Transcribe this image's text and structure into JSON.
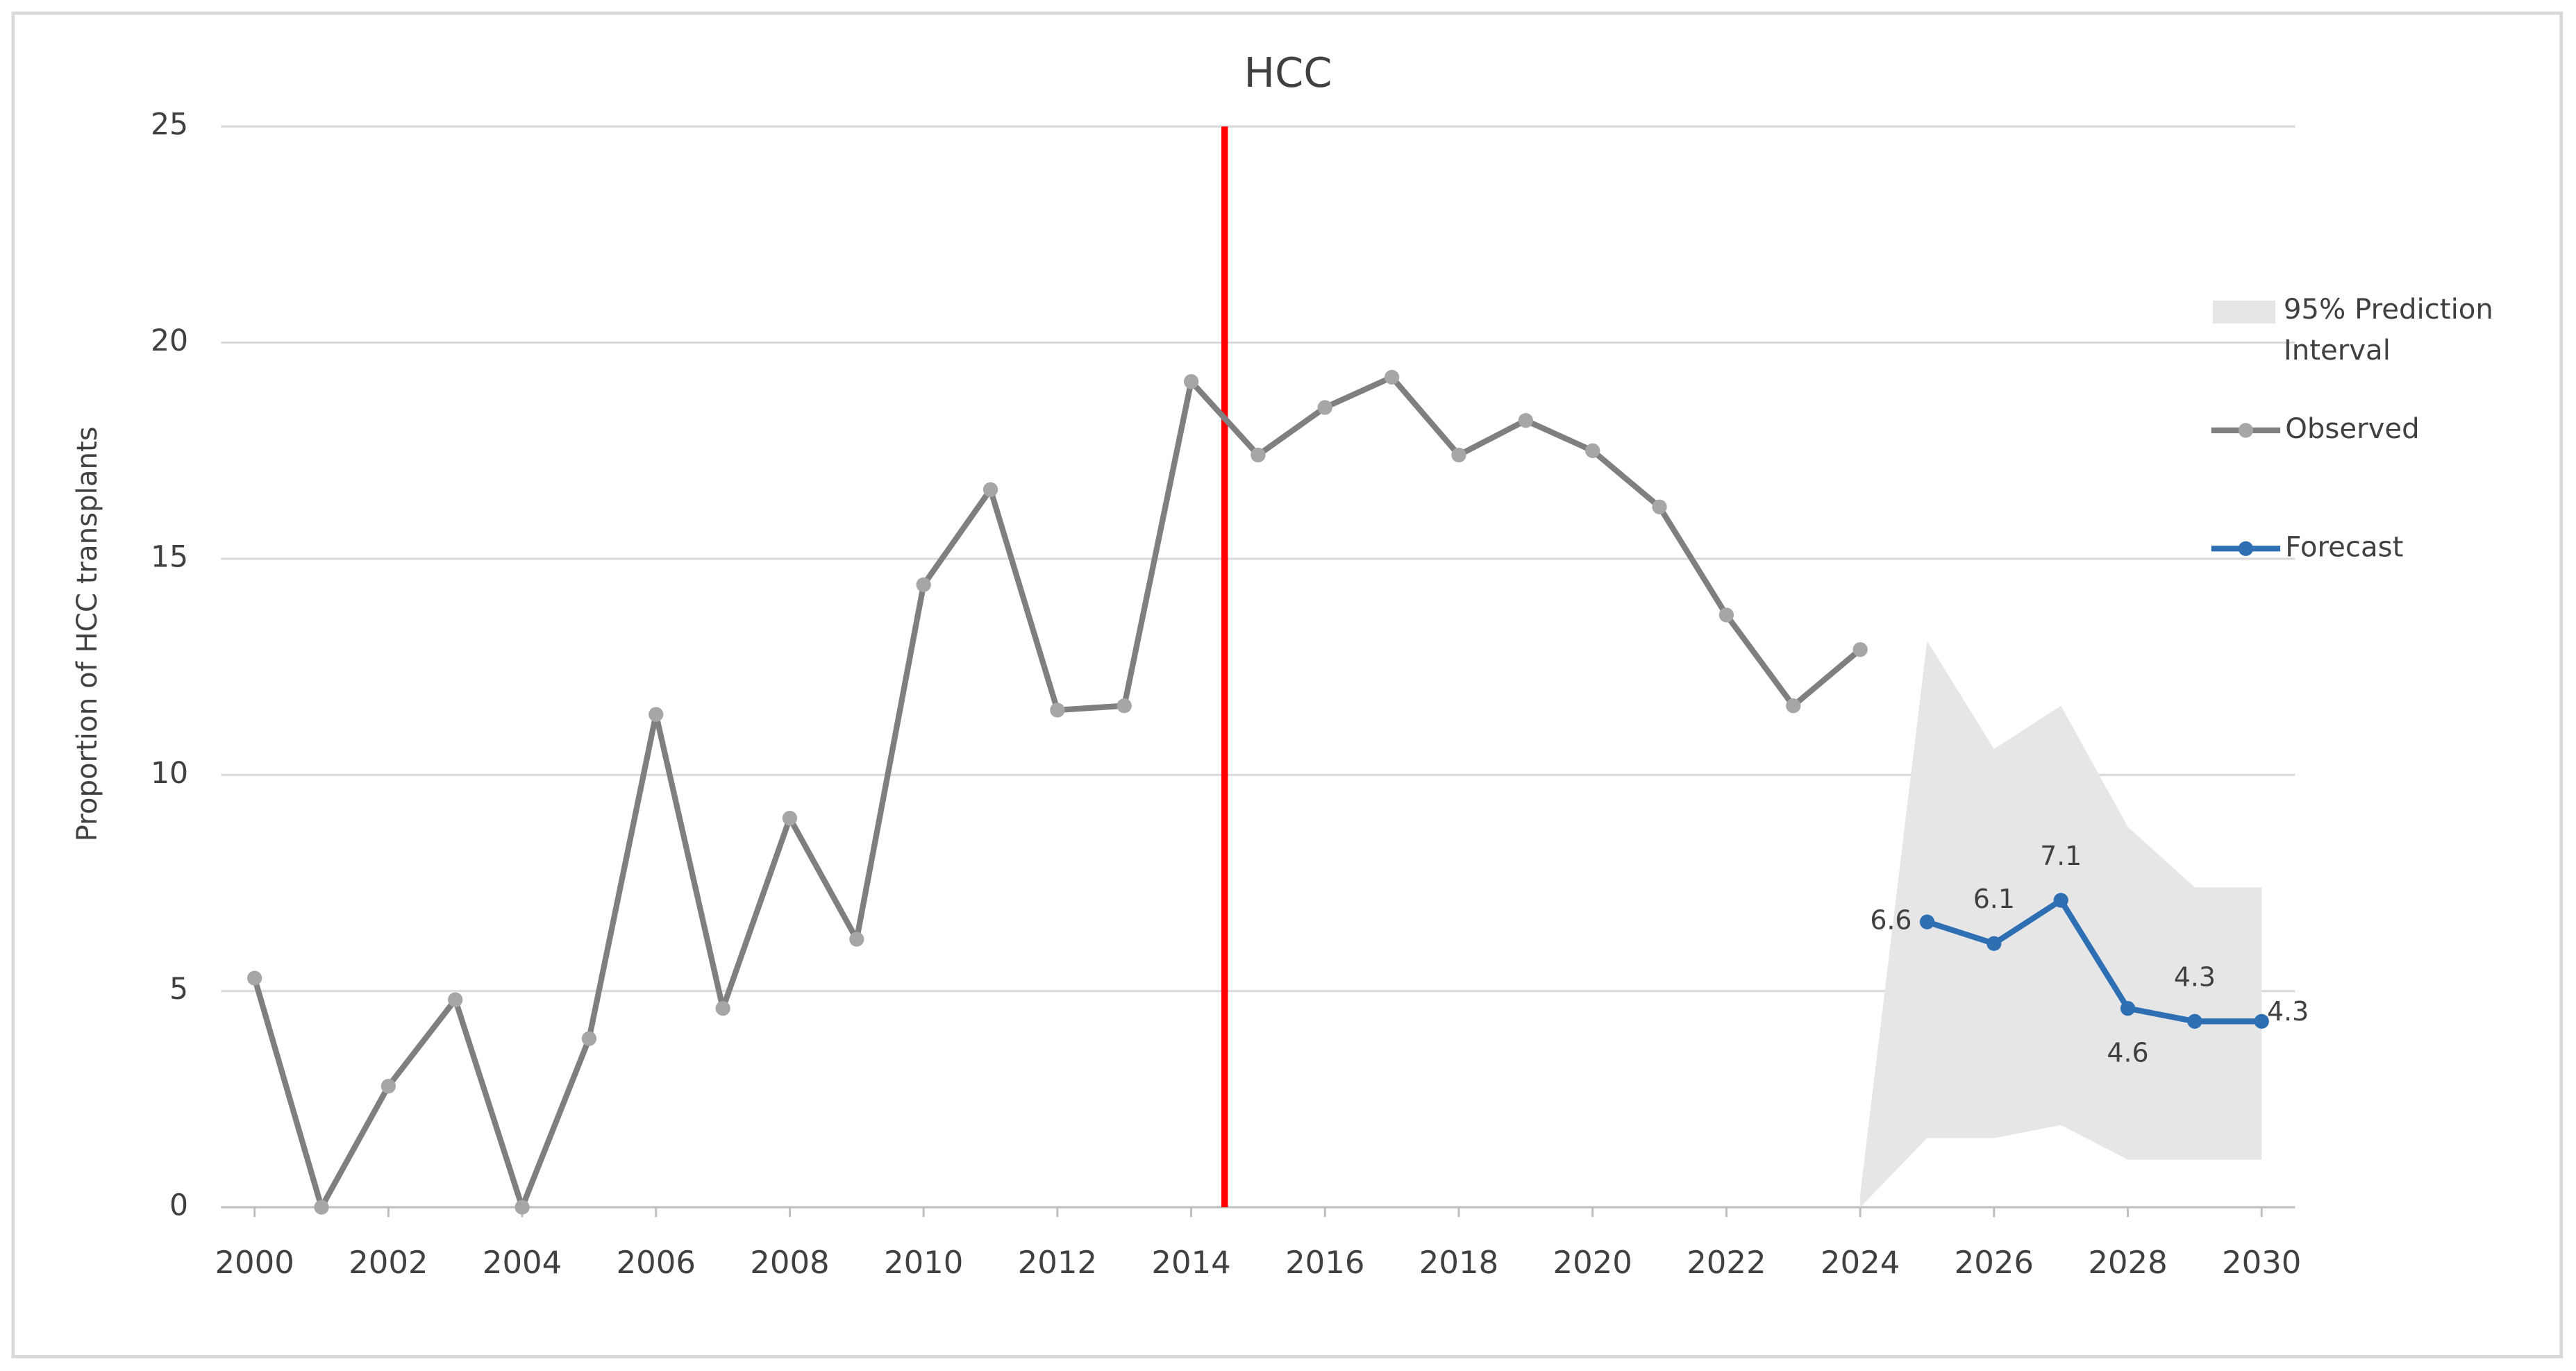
{
  "chart_data": {
    "type": "line",
    "title": "HCC",
    "ylabel": "Proportion of HCC transplants",
    "x": [
      2000,
      2001,
      2002,
      2003,
      2004,
      2005,
      2006,
      2007,
      2008,
      2009,
      2010,
      2011,
      2012,
      2013,
      2014,
      2015,
      2016,
      2017,
      2018,
      2019,
      2020,
      2021,
      2022,
      2023,
      2024,
      2025,
      2026,
      2027,
      2028,
      2029,
      2030
    ],
    "series": [
      {
        "name": "Observed",
        "color": "#7f7f7f",
        "marker_color": "#a6a6a6",
        "values": [
          5.3,
          0,
          2.8,
          4.8,
          0,
          3.9,
          11.4,
          4.6,
          9.0,
          6.2,
          14.4,
          16.6,
          11.5,
          11.6,
          19.1,
          17.4,
          18.5,
          19.2,
          17.4,
          18.2,
          17.5,
          16.2,
          13.7,
          11.6,
          12.9,
          null,
          null,
          null,
          null,
          null,
          null
        ]
      },
      {
        "name": "Forecast",
        "color": "#2e6fb4",
        "data_labels": true,
        "values": [
          null,
          null,
          null,
          null,
          null,
          null,
          null,
          null,
          null,
          null,
          null,
          null,
          null,
          null,
          null,
          null,
          null,
          null,
          null,
          null,
          null,
          null,
          null,
          null,
          null,
          6.6,
          6.1,
          7.1,
          4.6,
          4.3,
          4.3
        ]
      }
    ],
    "band": {
      "name": "95% Prediction Interval",
      "color": "#e6e6e6",
      "x": [
        2024,
        2025,
        2026,
        2027,
        2028,
        2029,
        2030
      ],
      "lower": [
        0,
        1.6,
        1.6,
        1.9,
        1.1,
        1.1,
        1.1
      ],
      "upper": [
        0.3,
        13.1,
        10.6,
        11.6,
        8.8,
        7.4,
        7.4
      ]
    },
    "vline": {
      "x": 2014.5,
      "color": "#ff0000"
    },
    "xlim": [
      1999.5,
      2030.5
    ],
    "xticks": [
      2000,
      2002,
      2004,
      2006,
      2008,
      2010,
      2012,
      2014,
      2016,
      2018,
      2020,
      2022,
      2024,
      2026,
      2028,
      2030
    ],
    "ylim": [
      0,
      25
    ],
    "yticks": [
      0,
      5,
      10,
      15,
      20,
      25
    ],
    "grid": true,
    "legend": "right"
  }
}
